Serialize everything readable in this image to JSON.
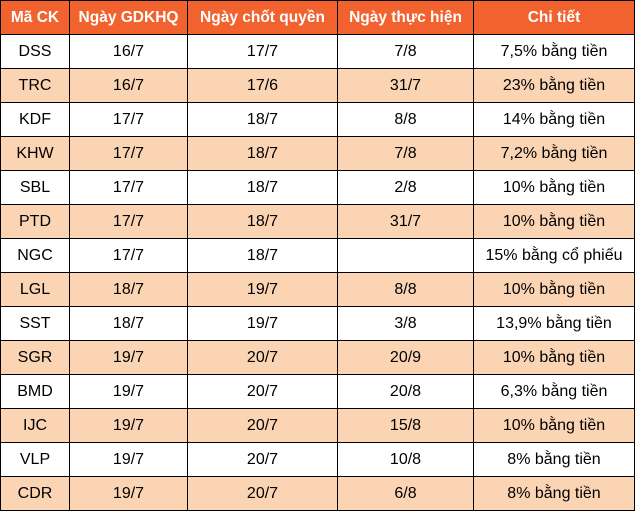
{
  "colors": {
    "header_bg": "#f2622f",
    "header_text": "#ffffff",
    "band_bg": "#fbd4b4",
    "row_bg": "#ffffff",
    "border": "#000000"
  },
  "table": {
    "headers": [
      "Mã CK",
      "Ngày GDKHQ",
      "Ngày chốt quyền",
      "Ngày thực hiện",
      "Chi tiết"
    ],
    "rows": [
      [
        "DSS",
        "16/7",
        "17/7",
        "7/8",
        "7,5% bằng tiền"
      ],
      [
        "TRC",
        "16/7",
        "17/6",
        "31/7",
        "23% bằng tiền"
      ],
      [
        "KDF",
        "17/7",
        "18/7",
        "8/8",
        "14% bằng tiền"
      ],
      [
        "KHW",
        "17/7",
        "18/7",
        "7/8",
        "7,2% bằng tiền"
      ],
      [
        "SBL",
        "17/7",
        "18/7",
        "2/8",
        "10% bằng tiền"
      ],
      [
        "PTD",
        "17/7",
        "18/7",
        "31/7",
        "10% bằng tiền"
      ],
      [
        "NGC",
        "17/7",
        "18/7",
        "",
        "15% bằng cổ phiếu"
      ],
      [
        "LGL",
        "18/7",
        "19/7",
        "8/8",
        "10% bằng tiền"
      ],
      [
        "SST",
        "18/7",
        "19/7",
        "3/8",
        "13,9% bằng tiền"
      ],
      [
        "SGR",
        "19/7",
        "20/7",
        "20/9",
        "10% bằng tiền"
      ],
      [
        "BMD",
        "19/7",
        "20/7",
        "20/8",
        "6,3% bằng tiền"
      ],
      [
        "IJC",
        "19/7",
        "20/7",
        "15/8",
        "10% bằng tiền"
      ],
      [
        "VLP",
        "19/7",
        "20/7",
        "10/8",
        "8% bằng tiền"
      ],
      [
        "CDR",
        "19/7",
        "20/7",
        "6/8",
        "8% bằng tiền"
      ]
    ]
  }
}
